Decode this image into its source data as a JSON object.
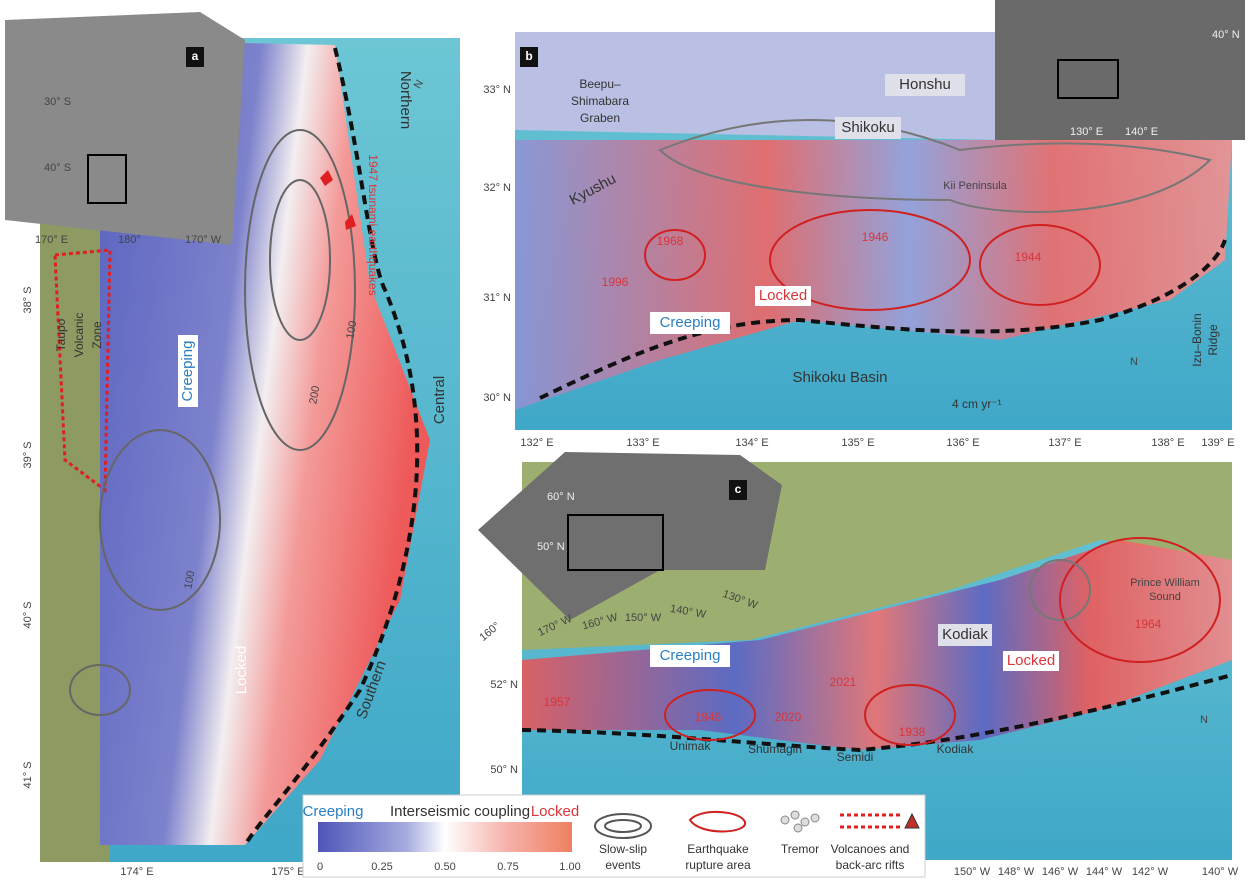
{
  "panel_a": {
    "label": "a",
    "segments": [
      "Northern",
      "Central",
      "Southern"
    ],
    "earthquake_label": "1947 tsunami earthquakes",
    "creeping": "Creeping",
    "locked": "Locked",
    "volcanic_zone": [
      "Taupo",
      "Volcanic",
      "Zone"
    ],
    "contours": [
      "100",
      "200",
      "100"
    ],
    "north": "N",
    "lat_ticks": [
      "38° S",
      "39° S",
      "40° S",
      "41° S"
    ],
    "lon_ticks": [
      "174° E",
      "175° E"
    ],
    "inset": {
      "lat_ticks": [
        "30° S",
        "40° S"
      ],
      "lon_ticks": [
        "170° E",
        "180°",
        "170° W"
      ]
    }
  },
  "panel_b": {
    "label": "b",
    "graben": [
      "Beepu–",
      "Shimabara",
      "Graben"
    ],
    "places": [
      "Honshu",
      "Shikoku",
      "Kyushu",
      "Kii Peninsula"
    ],
    "earthquakes": [
      "1968",
      "1996",
      "1946",
      "1944"
    ],
    "creeping": "Creeping",
    "locked": "Locked",
    "basin": "Shikoku Basin",
    "velocity": "4 cm yr⁻¹",
    "ridge": [
      "Izu–Bonin",
      "Ridge"
    ],
    "north": "N",
    "lat_ticks": [
      "33° N",
      "32° N",
      "31° N",
      "30° N"
    ],
    "lon_ticks": [
      "132° E",
      "133° E",
      "134° E",
      "135° E",
      "136° E",
      "137° E",
      "138° E",
      "139° E"
    ],
    "inset": {
      "lat_ticks": [
        "40° N"
      ],
      "lon_ticks": [
        "130° E",
        "140° E"
      ]
    }
  },
  "panel_c": {
    "label": "c",
    "creeping": "Creeping",
    "locked": "Locked",
    "places": [
      "Kodiak",
      "Prince William",
      "Sound"
    ],
    "earthquakes": [
      "1964",
      "1957",
      "1946",
      "2020",
      "2021",
      "1938"
    ],
    "segments": [
      "Unimak",
      "Shumagin",
      "Semidi",
      "Kodiak"
    ],
    "north": "N",
    "lat_ticks": [
      "52° N",
      "50° N"
    ],
    "lon_ticks": [
      "150° W",
      "148° W",
      "146° W",
      "144° W",
      "142° W",
      "140° W"
    ],
    "inset": {
      "lat_ticks": [
        "60° N",
        "50° N"
      ],
      "lon_ticks": [
        "160°",
        "170° W",
        "160° W",
        "150° W",
        "140° W",
        "130° W"
      ]
    }
  },
  "legend": {
    "creeping": "Creeping",
    "title": "Interseismic coupling",
    "locked": "Locked",
    "ticks": [
      "0",
      "0.25",
      "0.50",
      "0.75",
      "1.00"
    ],
    "slow_slip": [
      "Slow-slip",
      "events"
    ],
    "rupture": [
      "Earthquake",
      "rupture area"
    ],
    "tremor": "Tremor",
    "volcanoes": [
      "Volcanoes and",
      "back-arc rifts"
    ]
  }
}
